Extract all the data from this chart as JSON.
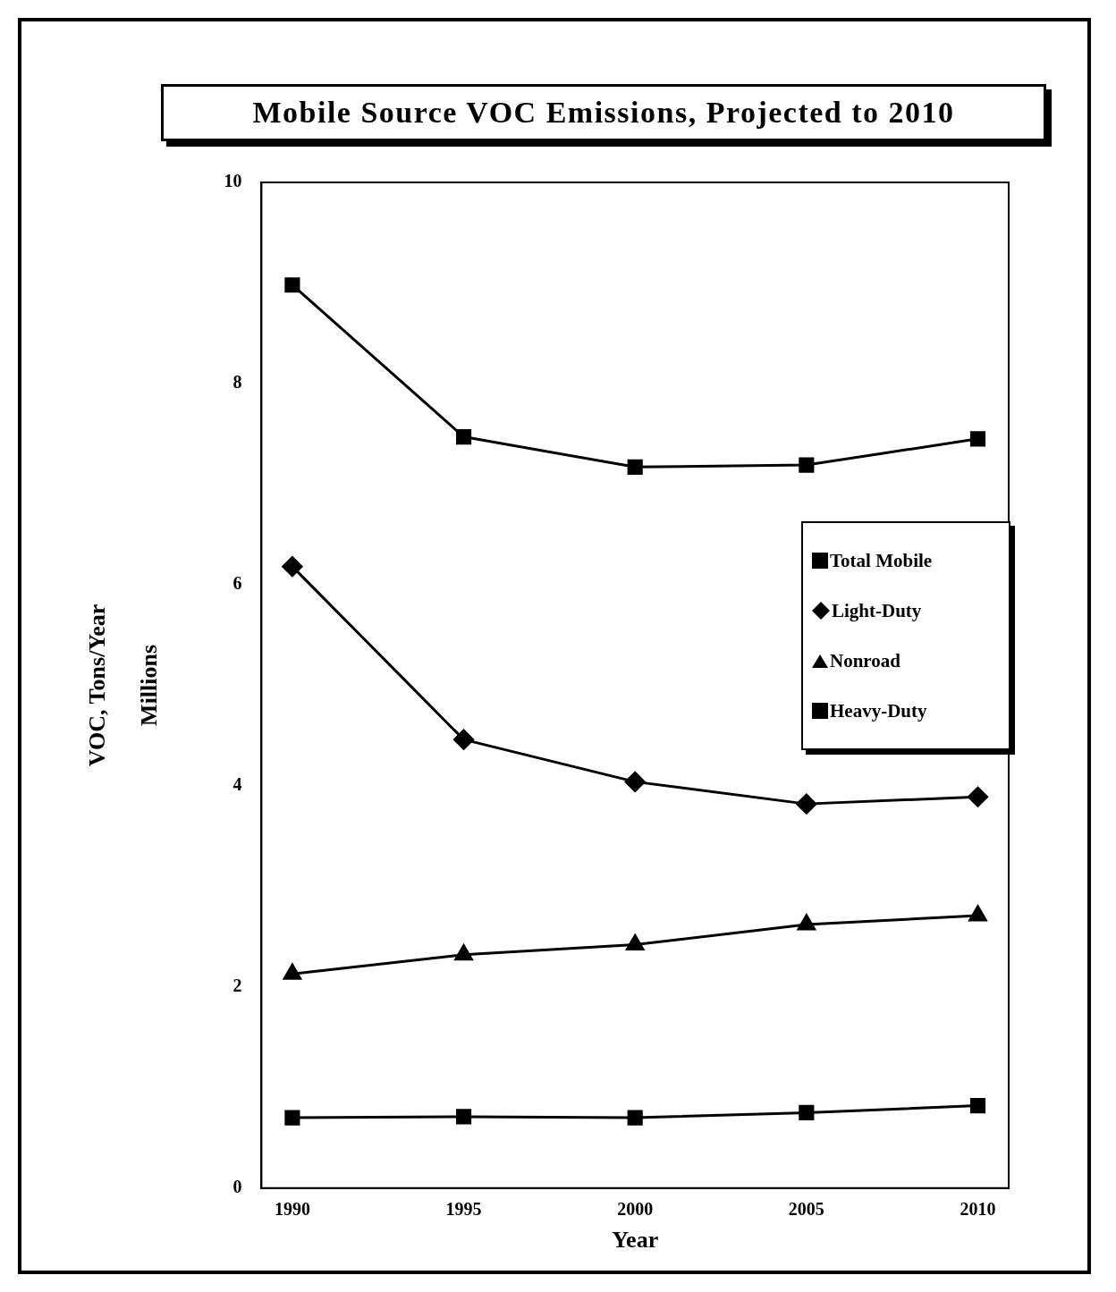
{
  "chart_data": {
    "type": "line",
    "title": "Mobile Source VOC Emissions, Projected to 2010",
    "xlabel": "Year",
    "ylabel": "VOC, Tons/Year\nMillions",
    "x": [
      1990,
      1995,
      2000,
      2005,
      2010
    ],
    "xlim": [
      1989.1,
      2010.9
    ],
    "xticks": [
      1990,
      1995,
      2000,
      2005,
      2010
    ],
    "ylim": [
      0,
      10
    ],
    "yticks": [
      0,
      2,
      4,
      6,
      8,
      10
    ],
    "series": [
      {
        "name": "Total Mobile",
        "color": "#000000",
        "marker": "square",
        "values": [
          8.98,
          7.47,
          7.17,
          7.19,
          7.45
        ]
      },
      {
        "name": "Light-Duty",
        "color": "#000000",
        "marker": "diamond",
        "values": [
          6.18,
          4.46,
          4.04,
          3.82,
          3.89
        ]
      },
      {
        "name": "Nonroad",
        "color": "#000000",
        "marker": "triangle",
        "values": [
          2.13,
          2.32,
          2.42,
          2.62,
          2.71
        ]
      },
      {
        "name": "Heavy-Duty",
        "color": "#000000",
        "marker": "square",
        "values": [
          0.7,
          0.71,
          0.7,
          0.75,
          0.82
        ]
      }
    ],
    "grid": false,
    "legend": "right"
  }
}
